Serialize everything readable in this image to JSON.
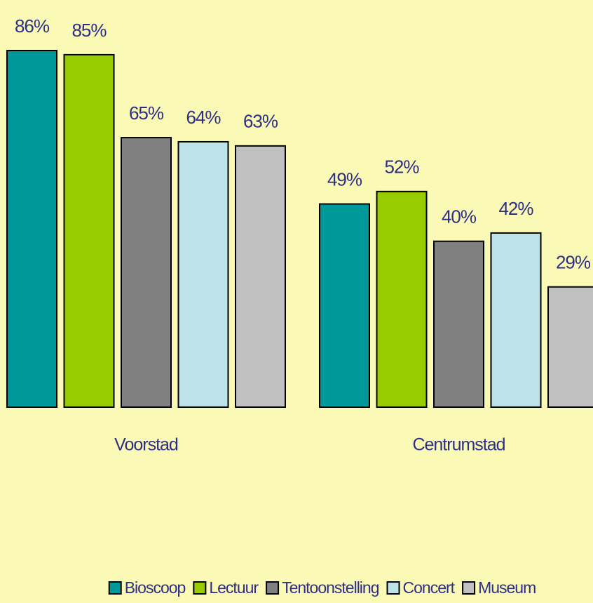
{
  "chart_data": {
    "type": "bar",
    "categories": [
      "Voorstad",
      "Centrumstad"
    ],
    "series": [
      {
        "name": "Bioscoop",
        "color": "#009999",
        "values": [
          86,
          49
        ],
        "value_labels": [
          "86%",
          "49%"
        ]
      },
      {
        "name": "Lectuur",
        "color": "#99cc00",
        "values": [
          85,
          52
        ],
        "value_labels": [
          "85%",
          "52%"
        ]
      },
      {
        "name": "Tentoonstelling",
        "color": "#808080",
        "values": [
          65,
          40
        ],
        "value_labels": [
          "65%",
          "40%"
        ]
      },
      {
        "name": "Concert",
        "color": "#bde3e8",
        "values": [
          64,
          42
        ],
        "value_labels": [
          "64%",
          "42%"
        ]
      },
      {
        "name": "Museum",
        "color": "#c0c0c0",
        "values": [
          63,
          29
        ],
        "value_labels": [
          "63%",
          "29%"
        ]
      }
    ]
  }
}
